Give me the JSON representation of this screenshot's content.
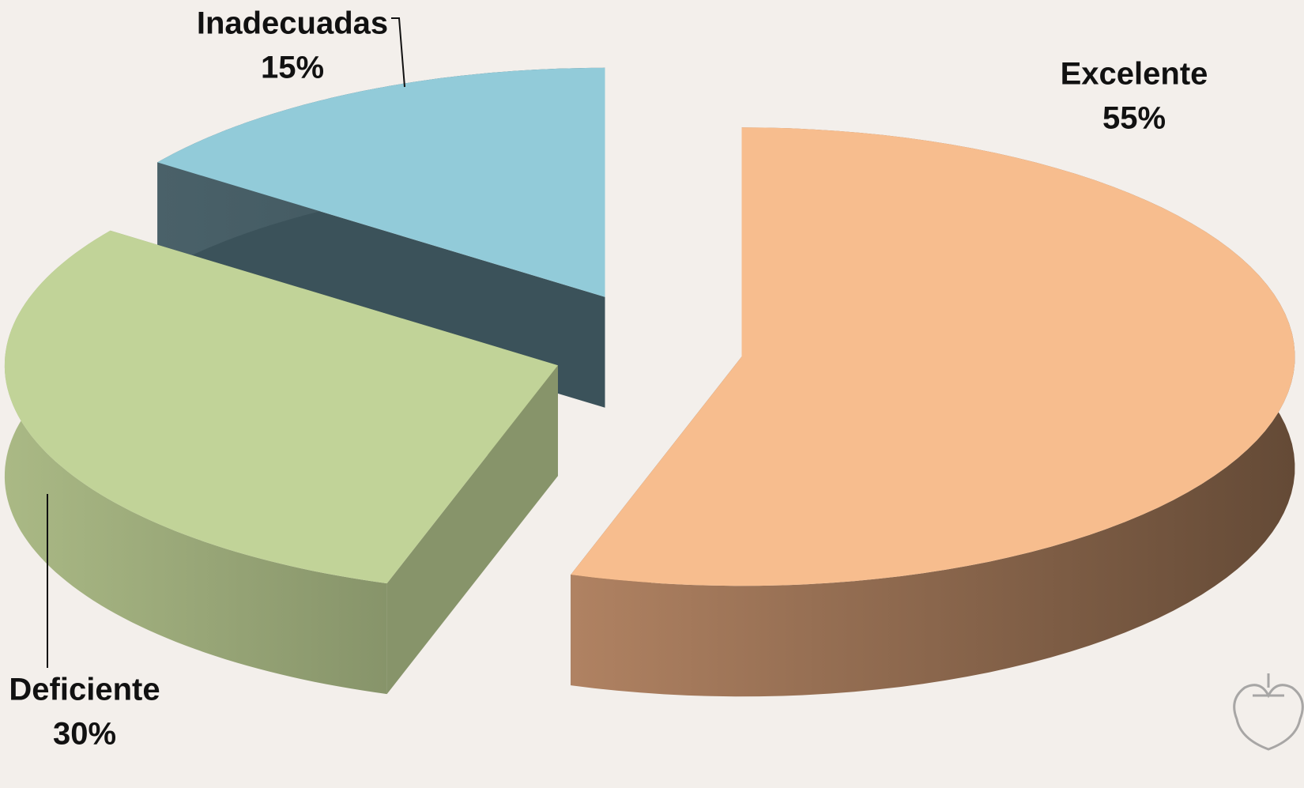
{
  "chart_data": {
    "type": "pie3d",
    "categories": [
      "Excelente",
      "Deficiente",
      "Inadecuadas"
    ],
    "values": [
      55,
      30,
      15
    ],
    "value_labels": [
      "55%",
      "30%",
      "15%"
    ],
    "colors": [
      "#f7bd8e",
      "#c1d398",
      "#92cbd9"
    ],
    "side_colors": [
      [
        "#b08262",
        "#644a36"
      ],
      [
        "#aab985",
        "#87946a"
      ],
      [
        "#4a6169",
        "#3b525a"
      ]
    ]
  }
}
